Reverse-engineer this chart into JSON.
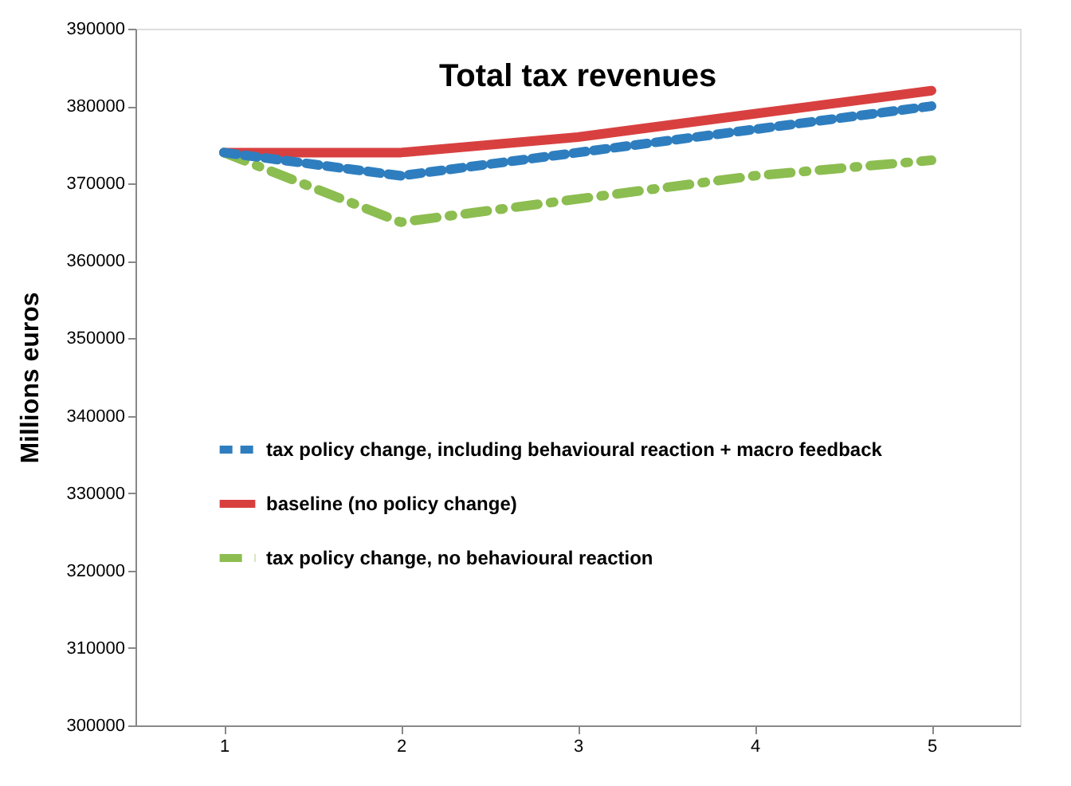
{
  "chart_data": {
    "type": "line",
    "title": "Total tax revenues",
    "ylabel": "Millions euros",
    "categories": [
      "1",
      "2",
      "3",
      "4",
      "5"
    ],
    "series": [
      {
        "name": "tax policy change, including behavioural reaction + macro feedback",
        "color": "#2e7ebf",
        "line_style": "dashed",
        "values": [
          374000,
          371000,
          374000,
          377000,
          380000
        ]
      },
      {
        "name": "baseline (no policy change)",
        "color": "#d84040",
        "line_style": "solid",
        "values": [
          374000,
          374000,
          376000,
          379000,
          382000
        ]
      },
      {
        "name": "tax policy change, no behavioural reaction",
        "color": "#8cbd50",
        "line_style": "dashdot",
        "values": [
          374000,
          365000,
          368000,
          371000,
          373000
        ]
      }
    ],
    "ylim": [
      300000,
      390000
    ],
    "yticks": [
      300000,
      310000,
      320000,
      330000,
      340000,
      350000,
      360000,
      370000,
      380000,
      390000
    ],
    "grid": false,
    "legend": "left",
    "marker": "none"
  }
}
